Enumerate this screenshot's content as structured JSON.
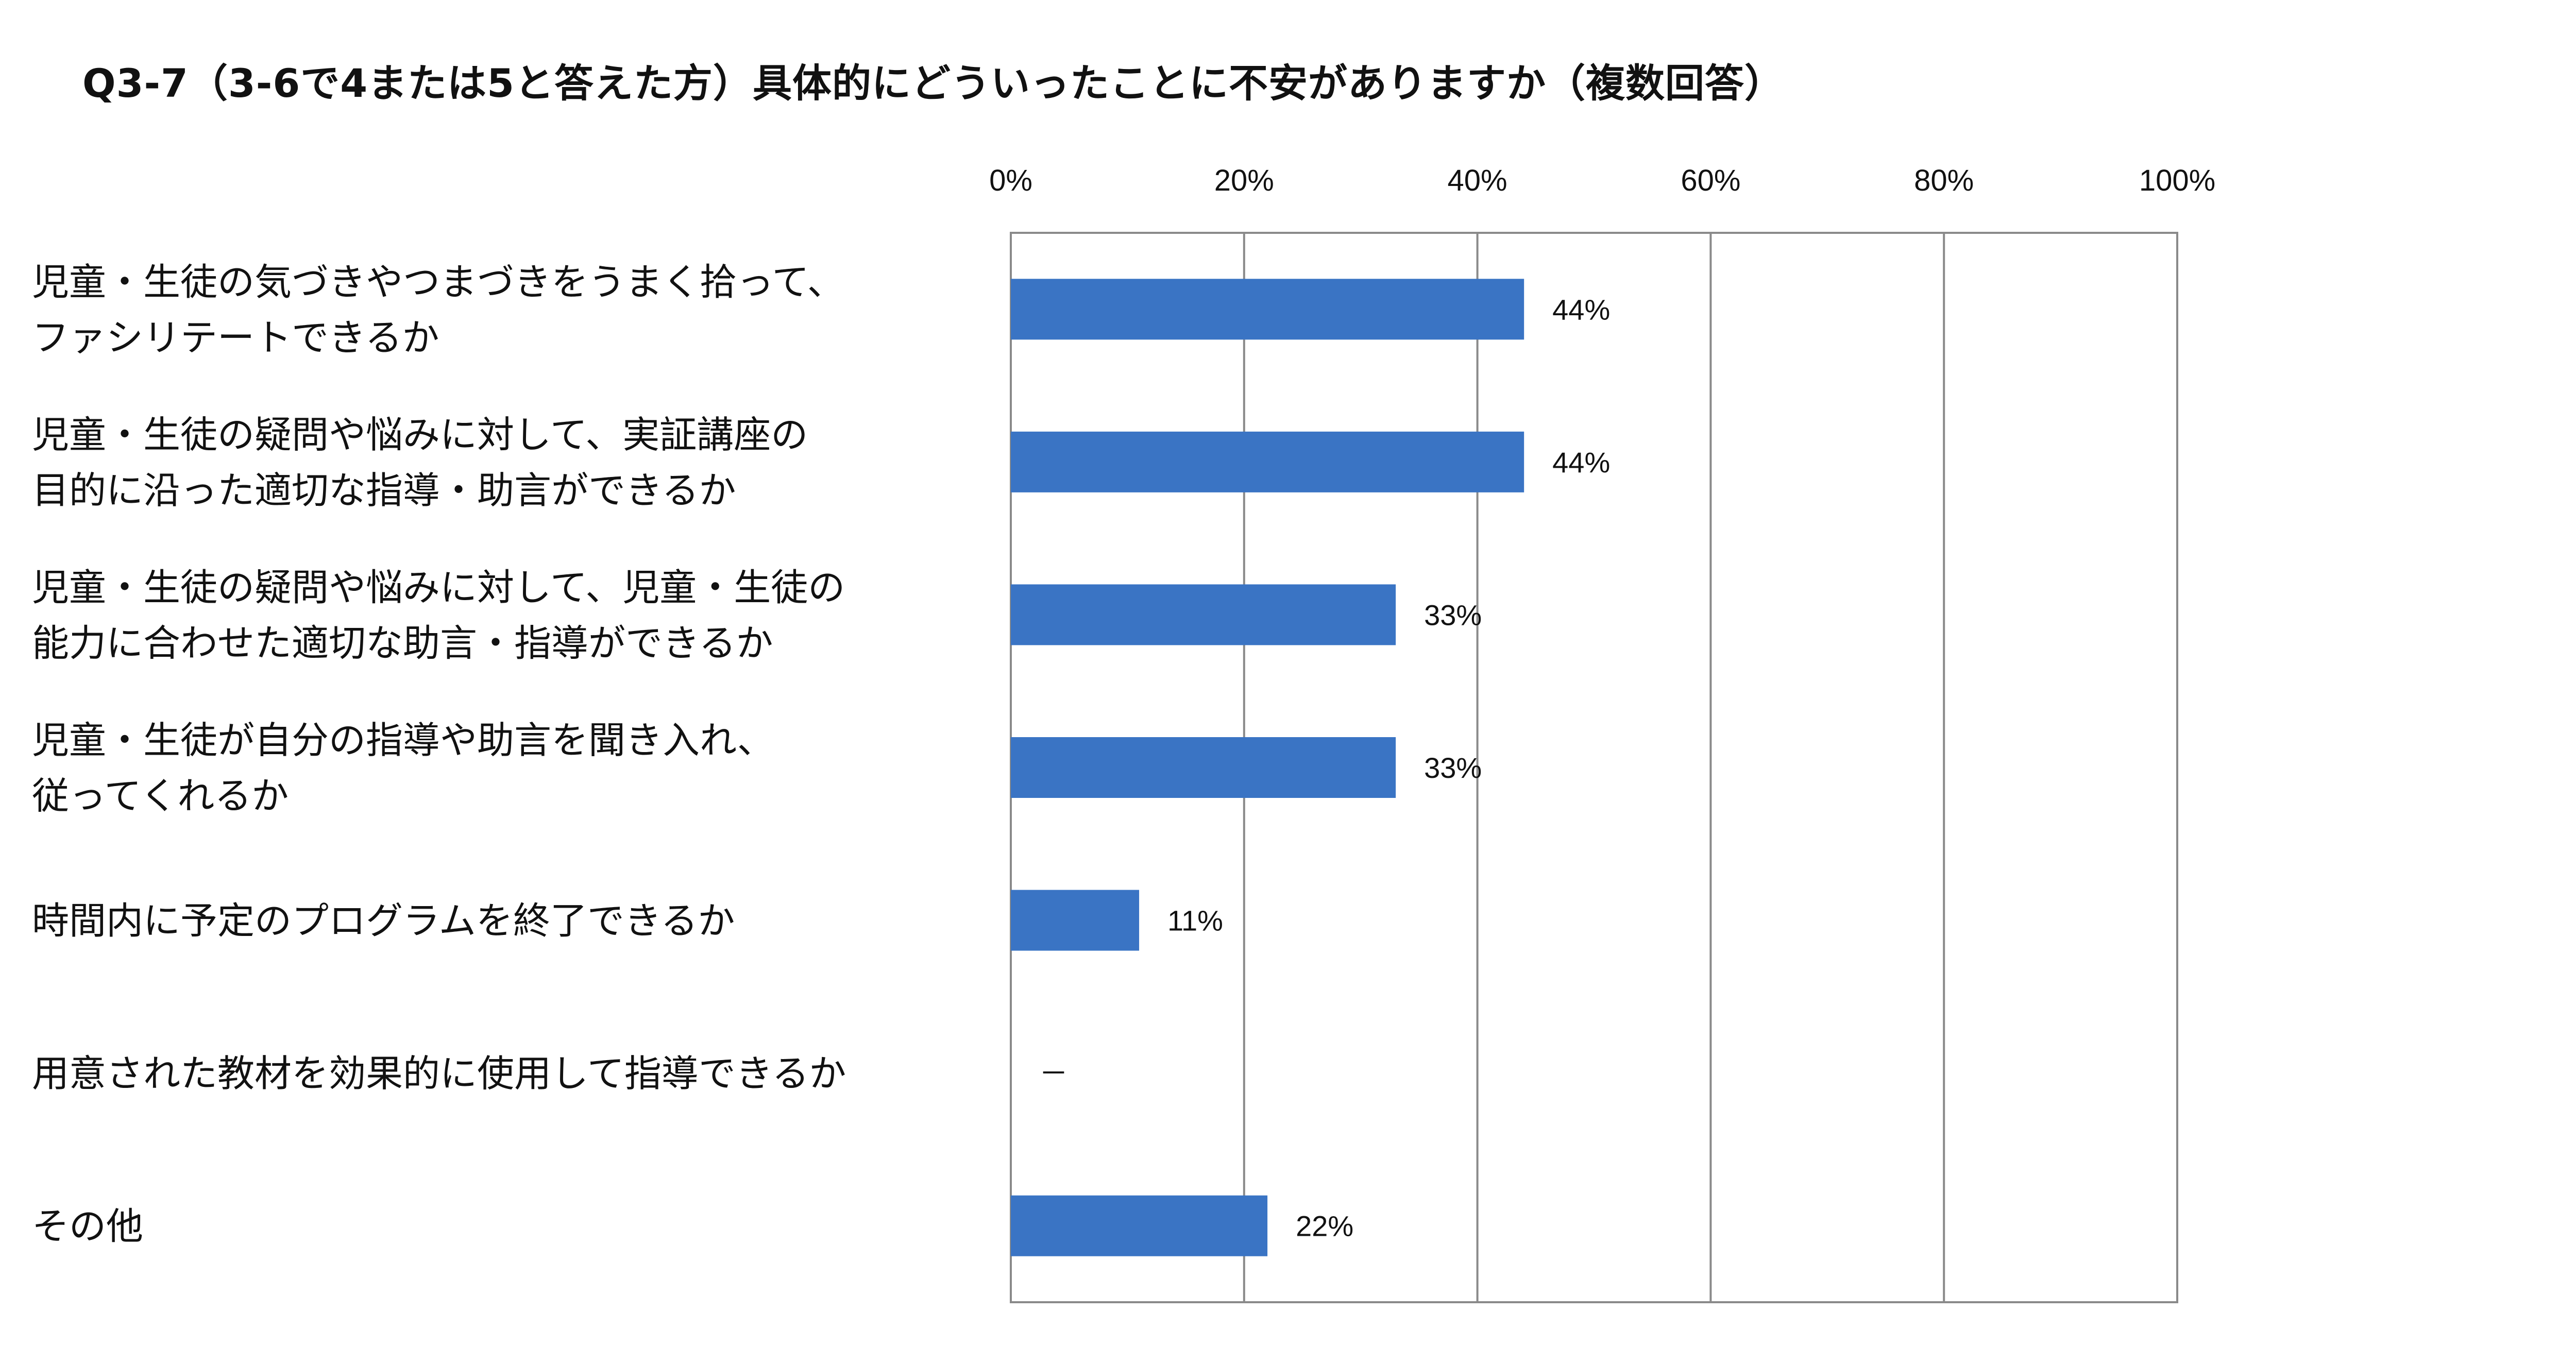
{
  "chart_data": {
    "type": "bar",
    "orientation": "horizontal",
    "title": "Q3-7（3-6で4または5と答えた方）具体的にどういったことに不安がありますか（複数回答）",
    "xlim": [
      0,
      100
    ],
    "ticks": [
      "0%",
      "20%",
      "40%",
      "60%",
      "80%",
      "100%"
    ],
    "grid": true,
    "legend": "none",
    "bar_color": "#3A74C4",
    "categories": [
      [
        "児童・生徒の気づきやつまづきをうまく拾って、",
        "ファシリテートできるか"
      ],
      [
        "児童・生徒の疑問や悩みに対して、実証講座の",
        "目的に沿った適切な指導・助言ができるか"
      ],
      [
        "児童・生徒の疑問や悩みに対して、児童・生徒の",
        "能力に合わせた適切な助言・指導ができるか"
      ],
      [
        "児童・生徒が自分の指導や助言を聞き入れ、",
        "従ってくれるか"
      ],
      [
        "時間内に予定のプログラムを終了できるか"
      ],
      [
        "用意された教材を効果的に使用して指導できるか"
      ],
      [
        "その他"
      ]
    ],
    "values": [
      44,
      44,
      33,
      33,
      11,
      null,
      22
    ],
    "data_labels": [
      "44%",
      "44%",
      "33%",
      "33%",
      "11%",
      "－",
      "22%"
    ]
  }
}
